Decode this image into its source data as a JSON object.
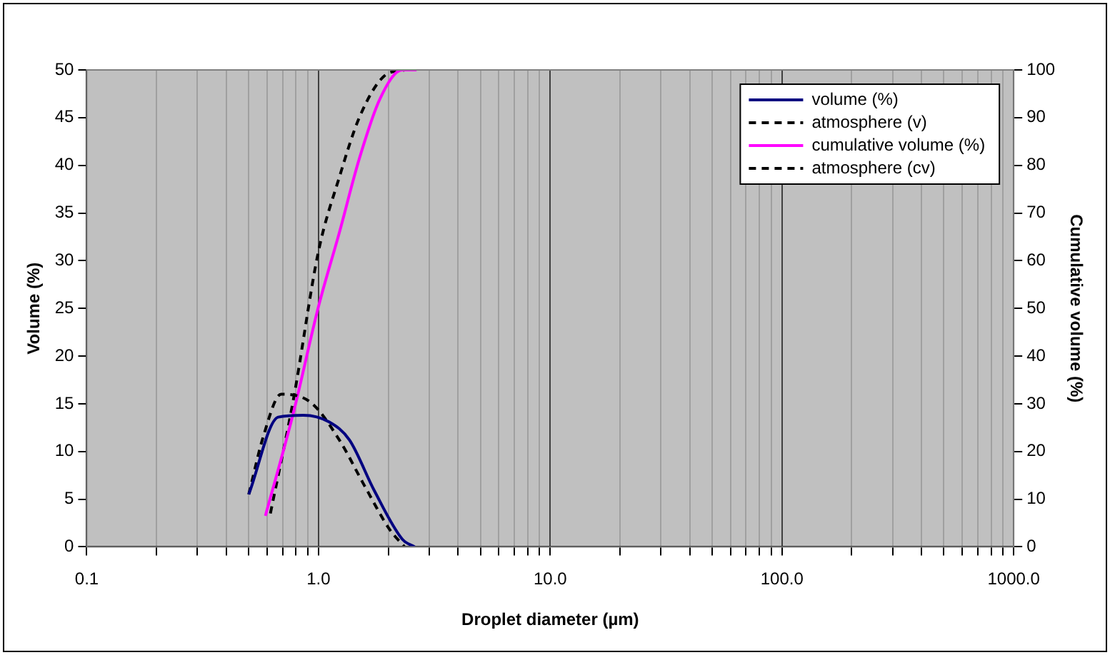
{
  "chart_data": {
    "type": "line",
    "xlabel": "Droplet diameter (µm)",
    "ylabel": "Volume (%)",
    "y2label": "Cumulative volume (%)",
    "log": "x",
    "grid": "x",
    "legend": "top right",
    "marker": "none",
    "xlim": [
      0.1,
      1000
    ],
    "xticks": [
      {
        "value": 0.1,
        "label": "0.1"
      },
      {
        "value": 0.2,
        "label": null
      },
      {
        "value": 0.3,
        "label": null
      },
      {
        "value": 0.4,
        "label": null
      },
      {
        "value": 0.5,
        "label": null
      },
      {
        "value": 0.6,
        "label": null
      },
      {
        "value": 0.7,
        "label": null
      },
      {
        "value": 0.8,
        "label": null
      },
      {
        "value": 0.9,
        "label": null
      },
      {
        "value": 1,
        "label": "1.0"
      },
      {
        "value": 2,
        "label": null
      },
      {
        "value": 3,
        "label": null
      },
      {
        "value": 4,
        "label": null
      },
      {
        "value": 5,
        "label": null
      },
      {
        "value": 6,
        "label": null
      },
      {
        "value": 7,
        "label": null
      },
      {
        "value": 8,
        "label": null
      },
      {
        "value": 9,
        "label": null
      },
      {
        "value": 10,
        "label": "10.0"
      },
      {
        "value": 20,
        "label": null
      },
      {
        "value": 30,
        "label": null
      },
      {
        "value": 40,
        "label": null
      },
      {
        "value": 50,
        "label": null
      },
      {
        "value": 60,
        "label": null
      },
      {
        "value": 70,
        "label": null
      },
      {
        "value": 80,
        "label": null
      },
      {
        "value": 90,
        "label": null
      },
      {
        "value": 100,
        "label": "100.0"
      },
      {
        "value": 200,
        "label": null
      },
      {
        "value": 300,
        "label": null
      },
      {
        "value": 400,
        "label": null
      },
      {
        "value": 500,
        "label": null
      },
      {
        "value": 600,
        "label": null
      },
      {
        "value": 700,
        "label": null
      },
      {
        "value": 800,
        "label": null
      },
      {
        "value": 900,
        "label": null
      },
      {
        "value": 1000,
        "label": "1000.0"
      }
    ],
    "ylim": [
      0,
      50
    ],
    "yticks": [
      0,
      5,
      10,
      15,
      20,
      25,
      30,
      35,
      40,
      45,
      50
    ],
    "y2lim": [
      0,
      100
    ],
    "y2ticks": [
      0,
      10,
      20,
      30,
      40,
      50,
      60,
      70,
      80,
      90,
      100
    ],
    "series": [
      {
        "name": "volume (%)",
        "color": "#000080",
        "line_style": "solid",
        "x": [
          0.5,
          0.67,
          0.86,
          1.11,
          1.36,
          1.74,
          2.3,
          2.6
        ],
        "values": [
          5.5,
          13.6,
          13.8,
          13.1,
          11.2,
          5.9,
          0.8,
          0
        ]
      },
      {
        "name": "atmosphere (v)",
        "color": "#000000",
        "line_style": "dashed",
        "x": [
          0.5,
          0.58,
          0.69,
          0.93,
          1.23,
          1.58,
          2.03,
          2.35
        ],
        "values": [
          5.5,
          11.7,
          16,
          15.1,
          11.2,
          6.4,
          1.8,
          0
        ]
      },
      {
        "name": "cumulative volume (%)",
        "color": "#ff00ff",
        "line_style": "solid",
        "axis": "y2",
        "x": [
          0.59,
          0.78,
          1.0,
          1.23,
          1.5,
          1.84,
          2.3,
          2.65
        ],
        "values": [
          6.5,
          28.2,
          50.4,
          65.9,
          81.4,
          93.9,
          100,
          100
        ]
      },
      {
        "name": "atmosphere (cv)",
        "color": "#000000",
        "line_style": "dashed",
        "axis": "y2",
        "x": [
          0.62,
          0.78,
          1.0,
          1.23,
          1.5,
          1.93,
          2.35
        ],
        "values": [
          7,
          31,
          62,
          77.5,
          90,
          98.8,
          100
        ]
      }
    ]
  }
}
